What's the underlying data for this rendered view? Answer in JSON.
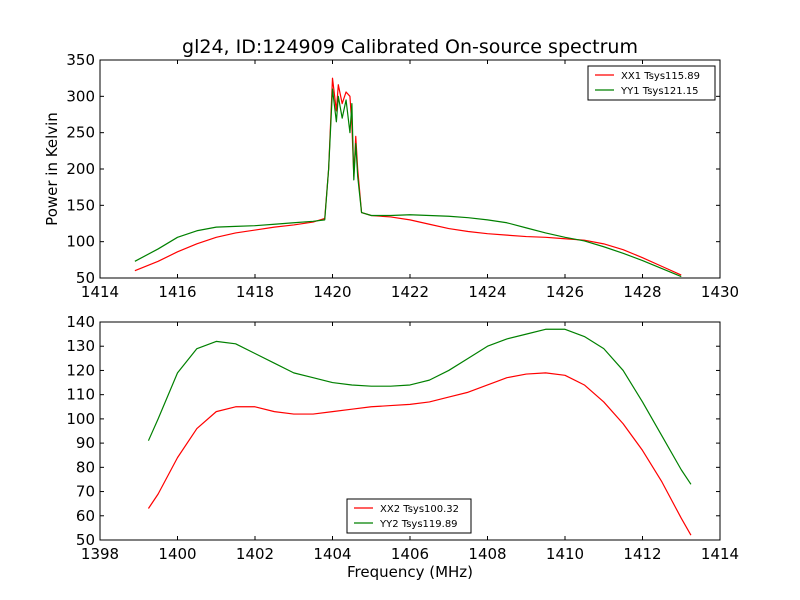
{
  "figure": {
    "title": "gl24, ID:124909 Calibrated On-source spectrum",
    "background": "#ffffff"
  },
  "chart_data": [
    {
      "type": "line",
      "panel": "top",
      "title": "gl24, ID:124909 Calibrated On-source spectrum",
      "xlabel": "",
      "ylabel": "Power in Kelvin",
      "xlim": [
        1414,
        1430
      ],
      "ylim": [
        50,
        350
      ],
      "xticks": [
        1414,
        1416,
        1418,
        1420,
        1422,
        1424,
        1426,
        1428,
        1430
      ],
      "yticks": [
        50,
        100,
        150,
        200,
        250,
        300,
        350
      ],
      "grid": false,
      "legend_position": "top-right",
      "series": [
        {
          "name": "XX1 Tsys115.89",
          "color": "#ff0000",
          "points": [
            [
              1414.9,
              60
            ],
            [
              1415.5,
              73
            ],
            [
              1416,
              86
            ],
            [
              1416.5,
              97
            ],
            [
              1417,
              106
            ],
            [
              1417.5,
              112
            ],
            [
              1418,
              116
            ],
            [
              1418.5,
              120
            ],
            [
              1419,
              123
            ],
            [
              1419.5,
              127
            ],
            [
              1419.8,
              132
            ],
            [
              1419.9,
              200
            ],
            [
              1420.0,
              325
            ],
            [
              1420.1,
              280
            ],
            [
              1420.15,
              316
            ],
            [
              1420.25,
              290
            ],
            [
              1420.35,
              306
            ],
            [
              1420.45,
              300
            ],
            [
              1420.5,
              260
            ],
            [
              1420.55,
              190
            ],
            [
              1420.6,
              245
            ],
            [
              1420.65,
              200
            ],
            [
              1420.75,
              140
            ],
            [
              1421,
              136
            ],
            [
              1421.5,
              134
            ],
            [
              1422,
              130
            ],
            [
              1422.5,
              124
            ],
            [
              1423,
              118
            ],
            [
              1423.5,
              114
            ],
            [
              1424,
              111
            ],
            [
              1424.5,
              109
            ],
            [
              1425,
              107
            ],
            [
              1425.5,
              106
            ],
            [
              1426,
              104
            ],
            [
              1426.5,
              102
            ],
            [
              1427,
              97
            ],
            [
              1427.5,
              89
            ],
            [
              1428,
              78
            ],
            [
              1428.5,
              66
            ],
            [
              1429,
              54
            ]
          ]
        },
        {
          "name": "YY1 Tsys121.15",
          "color": "#008000",
          "points": [
            [
              1414.9,
              73
            ],
            [
              1415.5,
              90
            ],
            [
              1416,
              106
            ],
            [
              1416.5,
              115
            ],
            [
              1417,
              120
            ],
            [
              1417.5,
              121
            ],
            [
              1418,
              122
            ],
            [
              1418.5,
              124
            ],
            [
              1419,
              126
            ],
            [
              1419.5,
              128
            ],
            [
              1419.8,
              130
            ],
            [
              1419.9,
              200
            ],
            [
              1420.0,
              310
            ],
            [
              1420.1,
              265
            ],
            [
              1420.15,
              300
            ],
            [
              1420.25,
              270
            ],
            [
              1420.35,
              295
            ],
            [
              1420.45,
              250
            ],
            [
              1420.5,
              290
            ],
            [
              1420.55,
              185
            ],
            [
              1420.6,
              235
            ],
            [
              1420.65,
              190
            ],
            [
              1420.75,
              140
            ],
            [
              1421,
              136
            ],
            [
              1421.5,
              136
            ],
            [
              1422,
              137
            ],
            [
              1422.5,
              136
            ],
            [
              1423,
              135
            ],
            [
              1423.5,
              133
            ],
            [
              1424,
              130
            ],
            [
              1424.5,
              126
            ],
            [
              1425,
              119
            ],
            [
              1425.5,
              112
            ],
            [
              1426,
              106
            ],
            [
              1426.5,
              101
            ],
            [
              1427,
              93
            ],
            [
              1427.5,
              84
            ],
            [
              1428,
              74
            ],
            [
              1428.5,
              63
            ],
            [
              1429,
              52
            ]
          ]
        }
      ]
    },
    {
      "type": "line",
      "panel": "bottom",
      "title": "",
      "xlabel": "Frequency (MHz)",
      "ylabel": "",
      "xlim": [
        1398,
        1414
      ],
      "ylim": [
        50,
        140
      ],
      "xticks": [
        1398,
        1400,
        1402,
        1404,
        1406,
        1408,
        1410,
        1412,
        1414
      ],
      "yticks": [
        50,
        60,
        70,
        80,
        90,
        100,
        110,
        120,
        130,
        140
      ],
      "grid": false,
      "legend_position": "bottom-center",
      "series": [
        {
          "name": "XX2 Tsys100.32",
          "color": "#ff0000",
          "points": [
            [
              1399.25,
              63
            ],
            [
              1399.5,
              69
            ],
            [
              1400,
              84
            ],
            [
              1400.5,
              96
            ],
            [
              1401,
              103
            ],
            [
              1401.5,
              105
            ],
            [
              1402,
              105
            ],
            [
              1402.5,
              103
            ],
            [
              1403,
              102
            ],
            [
              1403.5,
              102
            ],
            [
              1404,
              103
            ],
            [
              1404.5,
              104
            ],
            [
              1405,
              105
            ],
            [
              1405.5,
              105.5
            ],
            [
              1406,
              106
            ],
            [
              1406.5,
              107
            ],
            [
              1407,
              109
            ],
            [
              1407.5,
              111
            ],
            [
              1408,
              114
            ],
            [
              1408.5,
              117
            ],
            [
              1409,
              118.5
            ],
            [
              1409.5,
              119
            ],
            [
              1410,
              118
            ],
            [
              1410.5,
              114
            ],
            [
              1411,
              107
            ],
            [
              1411.5,
              98
            ],
            [
              1412,
              87
            ],
            [
              1412.5,
              74
            ],
            [
              1413,
              59
            ],
            [
              1413.25,
              52
            ]
          ]
        },
        {
          "name": "YY2 Tsys119.89",
          "color": "#008000",
          "points": [
            [
              1399.25,
              91
            ],
            [
              1399.5,
              100
            ],
            [
              1400,
              119
            ],
            [
              1400.5,
              129
            ],
            [
              1401,
              132
            ],
            [
              1401.5,
              131
            ],
            [
              1402,
              127
            ],
            [
              1402.5,
              123
            ],
            [
              1403,
              119
            ],
            [
              1403.5,
              117
            ],
            [
              1404,
              115
            ],
            [
              1404.5,
              114
            ],
            [
              1405,
              113.5
            ],
            [
              1405.5,
              113.5
            ],
            [
              1406,
              114
            ],
            [
              1406.5,
              116
            ],
            [
              1407,
              120
            ],
            [
              1407.5,
              125
            ],
            [
              1408,
              130
            ],
            [
              1408.5,
              133
            ],
            [
              1409,
              135
            ],
            [
              1409.5,
              137
            ],
            [
              1410,
              137
            ],
            [
              1410.5,
              134
            ],
            [
              1411,
              129
            ],
            [
              1411.5,
              120
            ],
            [
              1412,
              107
            ],
            [
              1412.5,
              93
            ],
            [
              1413,
              79
            ],
            [
              1413.25,
              73
            ]
          ]
        }
      ]
    }
  ]
}
